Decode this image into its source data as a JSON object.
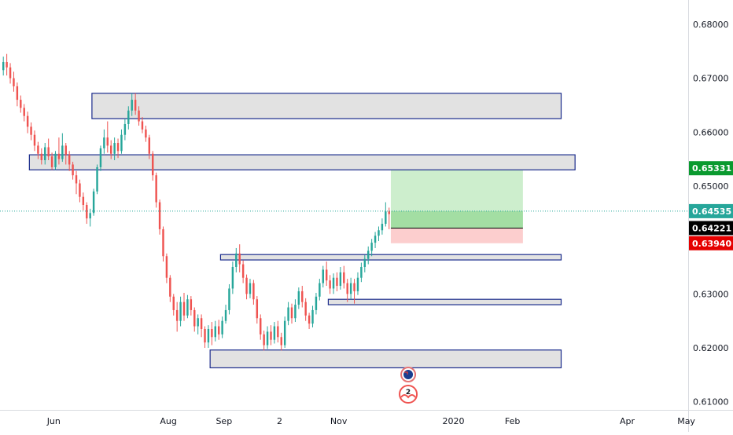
{
  "chart_data": {
    "type": "candlestick",
    "y_ticks": [
      "0.68000",
      "0.67000",
      "0.66000",
      "0.65000",
      "0.64000",
      "0.63000",
      "0.62000",
      "0.61000"
    ],
    "y_tick_values": [
      0.68,
      0.67,
      0.66,
      0.65,
      0.64,
      0.63,
      0.62,
      0.61
    ],
    "ylim": [
      0.6085,
      0.6845
    ],
    "x_ticks": [
      {
        "label": "Jun",
        "index": 15
      },
      {
        "label": "Aug",
        "index": 48
      },
      {
        "label": "Sep",
        "index": 64
      },
      {
        "label": "2",
        "index": 80
      },
      {
        "label": "Nov",
        "index": 97
      },
      {
        "label": "2020",
        "index": 130
      },
      {
        "label": "Feb",
        "index": 147
      },
      {
        "label": "Apr",
        "index": 180
      },
      {
        "label": "May",
        "index": 197
      }
    ],
    "xlim": [
      0,
      198
    ],
    "price_tags": [
      {
        "label": "0.65331",
        "value": 0.65331,
        "color": "#0a9a2f"
      },
      {
        "label": "0.64535",
        "value": 0.64535,
        "color": "#26a69a"
      },
      {
        "label": "0.64221",
        "value": 0.64221,
        "color": "#000000"
      },
      {
        "label": "0.63940",
        "value": 0.6394,
        "color": "#e50000"
      }
    ],
    "current_price": 0.64535,
    "zones": [
      {
        "x0": 26,
        "x1": 161,
        "y0": 0.6625,
        "y1": 0.6672
      },
      {
        "x0": 8,
        "x1": 165,
        "y0": 0.653,
        "y1": 0.6558
      },
      {
        "x0": 63,
        "x1": 161,
        "y0": 0.6363,
        "y1": 0.6373
      },
      {
        "x0": 94,
        "x1": 161,
        "y0": 0.628,
        "y1": 0.629
      },
      {
        "x0": 60,
        "x1": 161,
        "y0": 0.6163,
        "y1": 0.6196
      }
    ],
    "position": {
      "x0": 112,
      "x1": 150,
      "entry": 0.64221,
      "target": 0.65331,
      "stop": 0.6394,
      "current": 0.64535
    },
    "event_badges": [
      {
        "index": 117,
        "label": "",
        "kind": "flag"
      },
      {
        "index": 117,
        "label": "2",
        "kind": "earnings"
      }
    ],
    "colors": {
      "up": "#26a69a",
      "down": "#ef5350",
      "zone_fill": "#e2e2e2",
      "zone_border": "#1a2b8c",
      "profit": "#c8ecc8",
      "loss": "#fcc9c9"
    },
    "candles": [
      [
        0.6715,
        0.673,
        0.6705,
        0.674
      ],
      [
        0.673,
        0.672,
        0.6705,
        0.6745
      ],
      [
        0.672,
        0.67,
        0.669,
        0.6728
      ],
      [
        0.67,
        0.6685,
        0.6675,
        0.6712
      ],
      [
        0.6685,
        0.666,
        0.6648,
        0.6692
      ],
      [
        0.666,
        0.6645,
        0.6636,
        0.6668
      ],
      [
        0.6645,
        0.663,
        0.662,
        0.6652
      ],
      [
        0.663,
        0.661,
        0.6598,
        0.6638
      ],
      [
        0.661,
        0.6595,
        0.6585,
        0.6618
      ],
      [
        0.6595,
        0.6575,
        0.6565,
        0.6603
      ],
      [
        0.6575,
        0.656,
        0.655,
        0.6582
      ],
      [
        0.656,
        0.6548,
        0.654,
        0.657
      ],
      [
        0.6548,
        0.6572,
        0.654,
        0.658
      ],
      [
        0.6572,
        0.6555,
        0.6548,
        0.6588
      ],
      [
        0.6555,
        0.6535,
        0.653,
        0.6562
      ],
      [
        0.6535,
        0.656,
        0.653,
        0.6565
      ],
      [
        0.656,
        0.655,
        0.654,
        0.659
      ],
      [
        0.655,
        0.6575,
        0.6545,
        0.6598
      ],
      [
        0.6575,
        0.6558,
        0.654,
        0.658
      ],
      [
        0.6558,
        0.654,
        0.6528,
        0.6565
      ],
      [
        0.654,
        0.652,
        0.6512,
        0.6545
      ],
      [
        0.652,
        0.6505,
        0.6485,
        0.6528
      ],
      [
        0.6505,
        0.648,
        0.647,
        0.6512
      ],
      [
        0.648,
        0.6465,
        0.6455,
        0.6488
      ],
      [
        0.6465,
        0.644,
        0.643,
        0.647
      ],
      [
        0.644,
        0.645,
        0.6425,
        0.6458
      ],
      [
        0.645,
        0.649,
        0.6445,
        0.6495
      ],
      [
        0.649,
        0.6535,
        0.6485,
        0.654
      ],
      [
        0.6535,
        0.657,
        0.6528,
        0.6575
      ],
      [
        0.657,
        0.659,
        0.656,
        0.6605
      ],
      [
        0.659,
        0.6575,
        0.6562,
        0.662
      ],
      [
        0.6575,
        0.656,
        0.655,
        0.6585
      ],
      [
        0.656,
        0.658,
        0.6548,
        0.659
      ],
      [
        0.658,
        0.6565,
        0.6552,
        0.6588
      ],
      [
        0.6565,
        0.6595,
        0.656,
        0.6605
      ],
      [
        0.6595,
        0.6615,
        0.6585,
        0.6625
      ],
      [
        0.6615,
        0.664,
        0.6605,
        0.6648
      ],
      [
        0.664,
        0.666,
        0.663,
        0.6672
      ],
      [
        0.666,
        0.664,
        0.6632,
        0.6672
      ],
      [
        0.664,
        0.662,
        0.6612,
        0.6648
      ],
      [
        0.662,
        0.6605,
        0.6598,
        0.6628
      ],
      [
        0.6605,
        0.659,
        0.6582,
        0.6612
      ],
      [
        0.659,
        0.656,
        0.655,
        0.6595
      ],
      [
        0.656,
        0.652,
        0.651,
        0.6565
      ],
      [
        0.652,
        0.647,
        0.646,
        0.6525
      ],
      [
        0.647,
        0.642,
        0.641,
        0.6475
      ],
      [
        0.642,
        0.637,
        0.636,
        0.6425
      ],
      [
        0.637,
        0.633,
        0.632,
        0.6375
      ],
      [
        0.633,
        0.6295,
        0.6285,
        0.6335
      ],
      [
        0.6295,
        0.627,
        0.626,
        0.63
      ],
      [
        0.627,
        0.625,
        0.623,
        0.6285
      ],
      [
        0.625,
        0.6285,
        0.624,
        0.6295
      ],
      [
        0.6285,
        0.626,
        0.625,
        0.6302
      ],
      [
        0.626,
        0.629,
        0.6255,
        0.6298
      ],
      [
        0.629,
        0.627,
        0.626,
        0.6296
      ],
      [
        0.627,
        0.624,
        0.623,
        0.6275
      ],
      [
        0.624,
        0.6255,
        0.6225,
        0.6262
      ],
      [
        0.6255,
        0.6235,
        0.622,
        0.6262
      ],
      [
        0.6235,
        0.621,
        0.62,
        0.624
      ],
      [
        0.621,
        0.6235,
        0.62,
        0.6242
      ],
      [
        0.6235,
        0.622,
        0.6205,
        0.6248
      ],
      [
        0.622,
        0.624,
        0.6212,
        0.625
      ],
      [
        0.624,
        0.6225,
        0.6215,
        0.6252
      ],
      [
        0.6225,
        0.625,
        0.6218,
        0.6258
      ],
      [
        0.625,
        0.627,
        0.6245,
        0.628
      ],
      [
        0.627,
        0.631,
        0.6262,
        0.6318
      ],
      [
        0.631,
        0.635,
        0.63,
        0.636
      ],
      [
        0.635,
        0.6375,
        0.634,
        0.6385
      ],
      [
        0.6375,
        0.6355,
        0.634,
        0.6392
      ],
      [
        0.6355,
        0.633,
        0.632,
        0.6362
      ],
      [
        0.633,
        0.63,
        0.629,
        0.6336
      ],
      [
        0.63,
        0.632,
        0.6292,
        0.6328
      ],
      [
        0.632,
        0.629,
        0.628,
        0.6326
      ],
      [
        0.629,
        0.6255,
        0.6245,
        0.6296
      ],
      [
        0.6255,
        0.6225,
        0.6215,
        0.6262
      ],
      [
        0.6225,
        0.6205,
        0.6195,
        0.6232
      ],
      [
        0.6205,
        0.623,
        0.6198,
        0.624
      ],
      [
        0.623,
        0.6215,
        0.6205,
        0.6242
      ],
      [
        0.6215,
        0.624,
        0.6208,
        0.6248
      ],
      [
        0.624,
        0.622,
        0.621,
        0.625
      ],
      [
        0.622,
        0.6205,
        0.6195,
        0.6228
      ],
      [
        0.6205,
        0.625,
        0.62,
        0.6258
      ],
      [
        0.625,
        0.6275,
        0.6242,
        0.6285
      ],
      [
        0.6275,
        0.6255,
        0.6245,
        0.6282
      ],
      [
        0.6255,
        0.628,
        0.6248,
        0.629
      ],
      [
        0.628,
        0.6305,
        0.6272,
        0.6312
      ],
      [
        0.6305,
        0.6285,
        0.6275,
        0.6315
      ],
      [
        0.6285,
        0.626,
        0.625,
        0.6292
      ],
      [
        0.626,
        0.6245,
        0.6235,
        0.6265
      ],
      [
        0.6245,
        0.627,
        0.6238,
        0.6278
      ],
      [
        0.627,
        0.6295,
        0.6262,
        0.6302
      ],
      [
        0.6295,
        0.632,
        0.6288,
        0.6328
      ],
      [
        0.632,
        0.6345,
        0.6312,
        0.6352
      ],
      [
        0.6345,
        0.6325,
        0.6315,
        0.636
      ],
      [
        0.6325,
        0.631,
        0.63,
        0.6335
      ],
      [
        0.631,
        0.633,
        0.63,
        0.6338
      ],
      [
        0.633,
        0.6315,
        0.6305,
        0.634
      ],
      [
        0.6315,
        0.634,
        0.6308,
        0.635
      ],
      [
        0.634,
        0.632,
        0.631,
        0.6352
      ],
      [
        0.632,
        0.63,
        0.6285,
        0.6328
      ],
      [
        0.63,
        0.632,
        0.629,
        0.633
      ],
      [
        0.632,
        0.6305,
        0.6282,
        0.6328
      ],
      [
        0.6305,
        0.633,
        0.6298,
        0.634
      ],
      [
        0.633,
        0.635,
        0.6322,
        0.6358
      ],
      [
        0.635,
        0.6365,
        0.634,
        0.6372
      ],
      [
        0.6365,
        0.638,
        0.6355,
        0.6388
      ],
      [
        0.638,
        0.6395,
        0.637,
        0.6402
      ],
      [
        0.6395,
        0.6408,
        0.6385,
        0.6415
      ],
      [
        0.6408,
        0.6418,
        0.6398,
        0.6425
      ],
      [
        0.6418,
        0.643,
        0.641,
        0.644
      ],
      [
        0.643,
        0.6453,
        0.6425,
        0.647
      ],
      [
        0.6453,
        0.6448,
        0.642,
        0.646
      ]
    ]
  }
}
